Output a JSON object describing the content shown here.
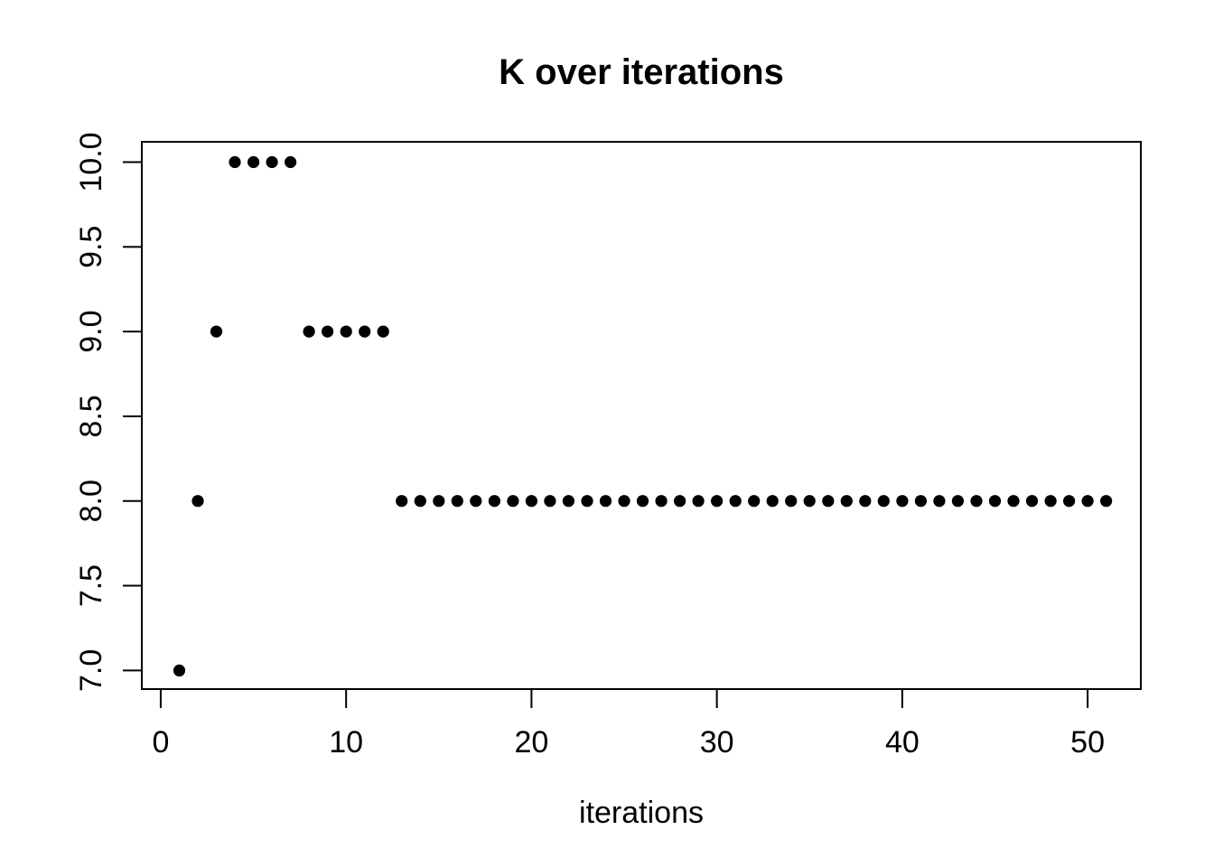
{
  "page": {
    "background": "#ffffff",
    "foreground": "#000000"
  },
  "chart_data": {
    "type": "scatter",
    "title": "K over iterations",
    "xlabel": "iterations",
    "ylabel": "",
    "x": [
      1,
      2,
      3,
      4,
      5,
      6,
      7,
      8,
      9,
      10,
      11,
      12,
      13,
      14,
      15,
      16,
      17,
      18,
      19,
      20,
      21,
      22,
      23,
      24,
      25,
      26,
      27,
      28,
      29,
      30,
      31,
      32,
      33,
      34,
      35,
      36,
      37,
      38,
      39,
      40,
      41,
      42,
      43,
      44,
      45,
      46,
      47,
      48,
      49,
      50,
      51
    ],
    "y": [
      7,
      8,
      9,
      10,
      10,
      10,
      10,
      9,
      9,
      9,
      9,
      9,
      8,
      8,
      8,
      8,
      8,
      8,
      8,
      8,
      8,
      8,
      8,
      8,
      8,
      8,
      8,
      8,
      8,
      8,
      8,
      8,
      8,
      8,
      8,
      8,
      8,
      8,
      8,
      8,
      8,
      8,
      8,
      8,
      8,
      8,
      8,
      8,
      8,
      8,
      8
    ],
    "xlim": [
      -1.02,
      52.87
    ],
    "ylim": [
      6.89,
      10.12
    ],
    "xticks": [
      0,
      10,
      20,
      30,
      40,
      50
    ],
    "xtick_labels": [
      "0",
      "10",
      "20",
      "30",
      "40",
      "50"
    ],
    "yticks": [
      7.0,
      7.5,
      8.0,
      8.5,
      9.0,
      9.5,
      10.0
    ],
    "ytick_labels": [
      "7.0",
      "7.5",
      "8.0",
      "8.5",
      "9.0",
      "9.5",
      "10.0"
    ],
    "grid": false,
    "legend": "none",
    "point": {
      "shape": "filled-circle",
      "color": "#000000",
      "radius_px": 6.6
    },
    "frame_color": "#000000",
    "background": "#ffffff"
  }
}
